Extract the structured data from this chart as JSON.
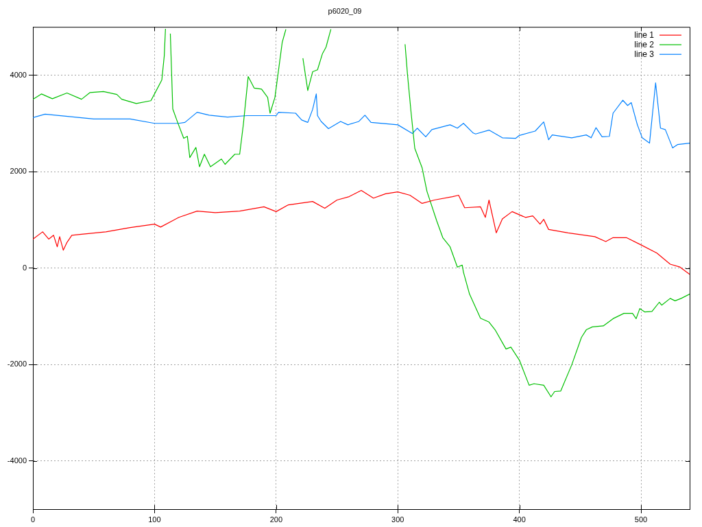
{
  "chart_data": {
    "type": "line",
    "title": "p6020_09",
    "xlim": [
      0,
      540
    ],
    "ylim": [
      -5000,
      5000
    ],
    "xticks": [
      0,
      100,
      200,
      300,
      400,
      500
    ],
    "yticks": [
      -4000,
      -2000,
      0,
      2000,
      4000
    ],
    "grid": true,
    "legend": "top right",
    "marker": "none",
    "line_style": "solid",
    "series": [
      {
        "name": "line 1",
        "color": "#ff0000",
        "x": [
          0,
          8,
          13,
          17,
          20,
          22,
          25,
          28,
          32,
          40,
          60,
          80,
          100,
          105,
          120,
          135,
          150,
          170,
          190,
          200,
          210,
          230,
          240,
          250,
          260,
          270,
          280,
          290,
          300,
          310,
          320,
          330,
          345,
          350,
          355,
          368,
          372,
          375,
          381,
          386,
          394,
          405,
          411,
          417,
          420,
          424,
          440,
          462,
          471,
          477,
          488,
          500,
          513,
          524,
          532,
          540
        ],
        "values": [
          600,
          750,
          600,
          680,
          440,
          650,
          370,
          530,
          680,
          700,
          750,
          840,
          910,
          850,
          1050,
          1180,
          1150,
          1180,
          1270,
          1170,
          1310,
          1380,
          1240,
          1410,
          1480,
          1610,
          1450,
          1540,
          1580,
          1510,
          1340,
          1410,
          1480,
          1510,
          1250,
          1270,
          1050,
          1410,
          730,
          1020,
          1170,
          1050,
          1080,
          910,
          1010,
          800,
          730,
          650,
          550,
          630,
          630,
          480,
          310,
          80,
          20,
          -130
        ]
      },
      {
        "name": "line 2",
        "color": "#00c000",
        "x": [
          0,
          7,
          16,
          28,
          40,
          47,
          58,
          69,
          73,
          85,
          97,
          100,
          106,
          108,
          109,
          111,
          113,
          115,
          119,
          124,
          127,
          129,
          134,
          137,
          141,
          146,
          155,
          158,
          166,
          170,
          173,
          177,
          182,
          188,
          193,
          195,
          199,
          205,
          208,
          215,
          222,
          226,
          230,
          234,
          238,
          241,
          245,
          270,
          306,
          308,
          311,
          314,
          320,
          324,
          332,
          337,
          343,
          349,
          353,
          354,
          359,
          368,
          375,
          380,
          389,
          393,
          400,
          408,
          412,
          420,
          426,
          429,
          434,
          443,
          451,
          455,
          460,
          469,
          477,
          486,
          493,
          496,
          499,
          503,
          509,
          515,
          517,
          524,
          528,
          533,
          540
        ],
        "values": [
          3500,
          3610,
          3510,
          3630,
          3500,
          3640,
          3660,
          3600,
          3500,
          3410,
          3470,
          3610,
          3900,
          4400,
          4960,
          null,
          4860,
          3300,
          3020,
          2690,
          2730,
          2290,
          2500,
          2100,
          2360,
          2100,
          2260,
          2150,
          2360,
          2360,
          2970,
          3970,
          3730,
          3710,
          3540,
          3210,
          3540,
          4680,
          4950,
          null,
          4350,
          3680,
          4070,
          4110,
          4440,
          4580,
          4950,
          null,
          4640,
          4010,
          3210,
          2480,
          2080,
          1590,
          980,
          630,
          440,
          20,
          60,
          -85,
          -540,
          -1040,
          -1120,
          -1280,
          -1680,
          -1640,
          -1910,
          -2430,
          -2400,
          -2430,
          -2670,
          -2560,
          -2550,
          -2010,
          -1440,
          -1280,
          -1220,
          -1200,
          -1050,
          -940,
          -940,
          -1050,
          -840,
          -910,
          -900,
          -710,
          -770,
          -630,
          -680,
          -630,
          -540
        ]
      },
      {
        "name": "line 3",
        "color": "#0080ff",
        "x": [
          0,
          10,
          50,
          80,
          100,
          120,
          125,
          135,
          145,
          160,
          176,
          200,
          202,
          216,
          221,
          226,
          230,
          233,
          234,
          237,
          243,
          253,
          259,
          268,
          273,
          278,
          300,
          312,
          316,
          323,
          328,
          343,
          349,
          354,
          362,
          364,
          375,
          386,
          397,
          400,
          413,
          420,
          424,
          427,
          443,
          455,
          459,
          463,
          468,
          474,
          477,
          485,
          489,
          492,
          497,
          501,
          507,
          512,
          516,
          520,
          526,
          530,
          540
        ],
        "values": [
          3120,
          3190,
          3090,
          3090,
          3000,
          3000,
          3020,
          3230,
          3170,
          3130,
          3160,
          3160,
          3230,
          3210,
          3070,
          3020,
          3290,
          3610,
          3160,
          3040,
          2890,
          3040,
          2970,
          3040,
          3170,
          3020,
          2970,
          2790,
          2900,
          2720,
          2870,
          2970,
          2900,
          3000,
          2800,
          2780,
          2860,
          2700,
          2690,
          2750,
          2840,
          3030,
          2660,
          2760,
          2700,
          2760,
          2700,
          2910,
          2720,
          2730,
          3210,
          3480,
          3370,
          3430,
          2970,
          2700,
          2590,
          3840,
          2900,
          2870,
          2490,
          2560,
          2590
        ]
      }
    ]
  }
}
